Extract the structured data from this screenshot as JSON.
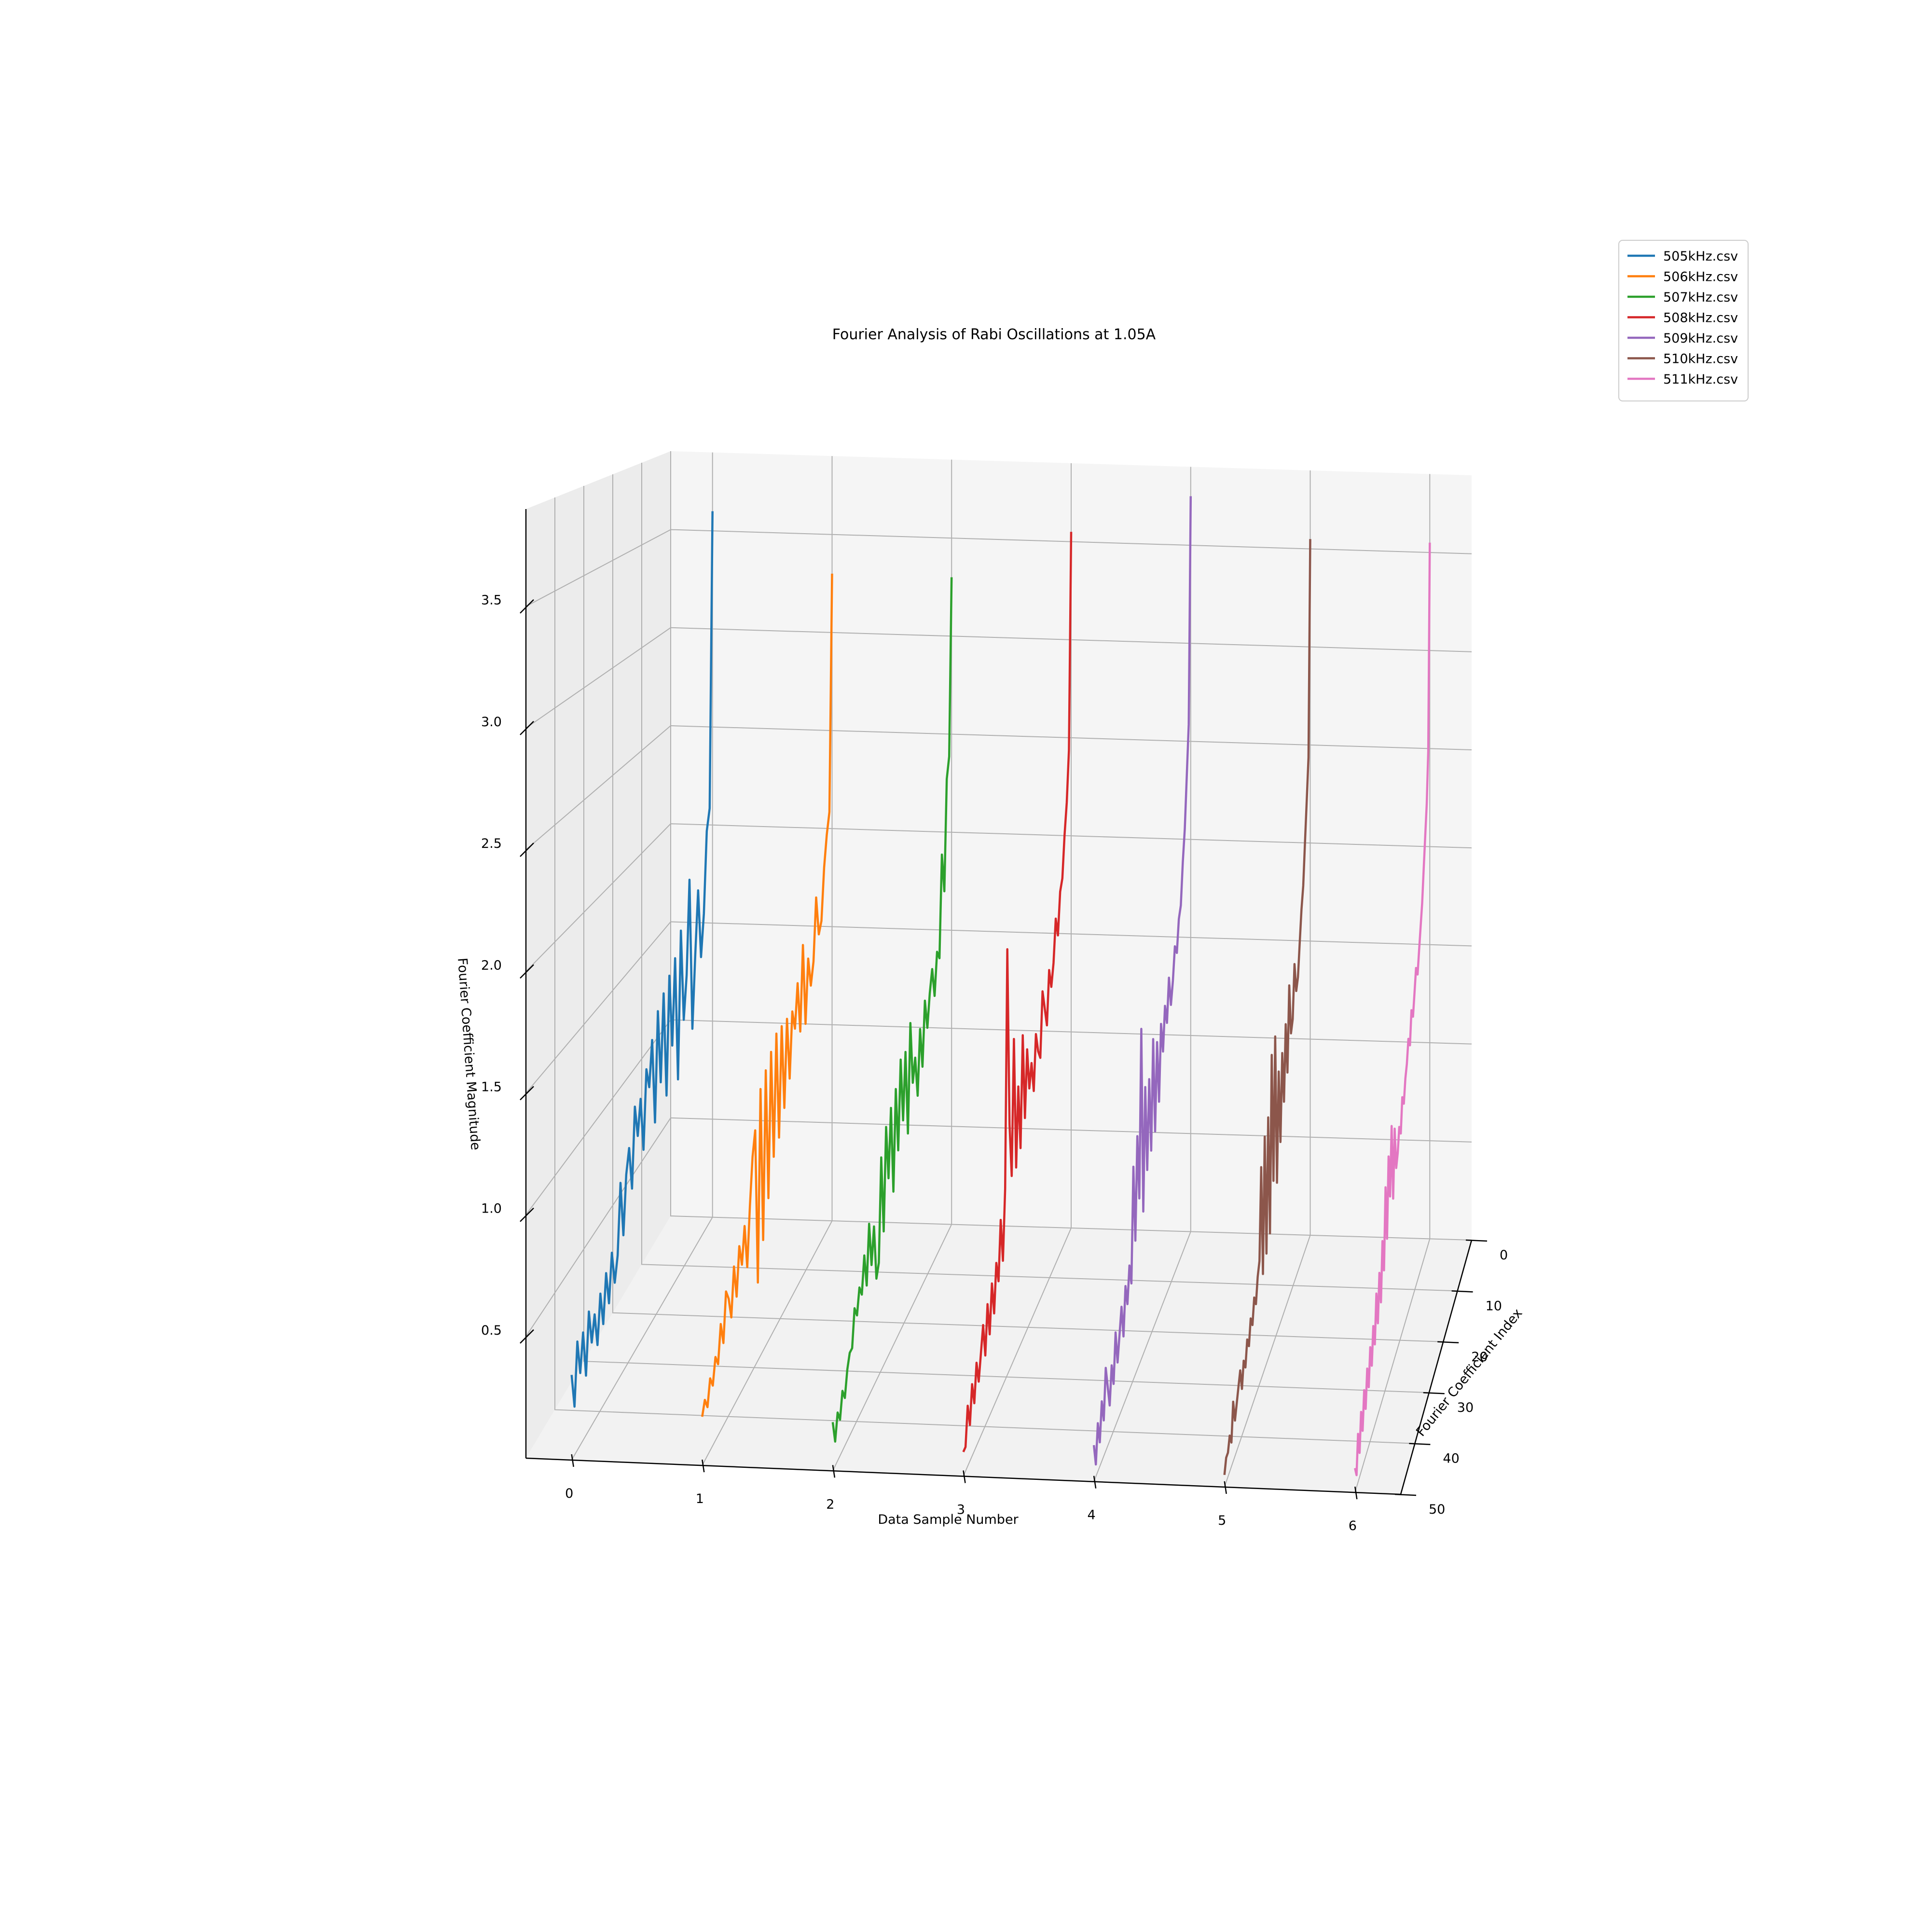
{
  "chart_data": {
    "type": "line",
    "title": "Fourier Analysis of Rabi Oscillations at 1.05A",
    "xlabel": "Data Sample Number",
    "ylabel": "Fourier Coefficient Index",
    "zlabel": "Fourier Coefficient Magnitude",
    "x_ticks": [
      "0",
      "1",
      "2",
      "3",
      "4",
      "5",
      "6"
    ],
    "y_ticks": [
      "0",
      "10",
      "20",
      "30",
      "40",
      "50"
    ],
    "z_ticks": [
      "0.5",
      "1.0",
      "1.5",
      "2.0",
      "2.5",
      "3.0",
      "3.5"
    ],
    "xlim": [
      -0.35,
      6.35
    ],
    "ylim": [
      0,
      50
    ],
    "zlim": [
      0,
      3.9
    ],
    "grid": true,
    "legend_position": "top-right",
    "colors": [
      "#1f77b4",
      "#ff7f0e",
      "#2ca02c",
      "#d62728",
      "#9467bd",
      "#8c564b",
      "#e377c2"
    ],
    "series": [
      {
        "name": "505kHz.csv",
        "x": 0,
        "values": [
          3.6,
          2.1,
          2.0,
          1.6,
          1.4,
          1.75,
          1.45,
          1.1,
          1.85,
          1.4,
          1.2,
          1.65,
          0.95,
          1.55,
          1.15,
          1.5,
          0.95,
          1.45,
          1.05,
          1.4,
          0.9,
          1.3,
          1.1,
          1.2,
          0.85,
          1.1,
          0.95,
          1.1,
          0.75,
          0.95,
          0.85,
          0.6,
          0.85,
          0.55,
          0.45,
          0.6,
          0.4,
          0.55,
          0.35,
          0.5,
          0.3,
          0.45,
          0.35,
          0.5,
          0.25,
          0.45,
          0.3,
          0.45,
          0.2,
          0.35
        ]
      },
      {
        "name": "506kHz.csv",
        "x": 1,
        "values": [
          3.3,
          2.1,
          2.0,
          1.85,
          1.6,
          1.55,
          1.75,
          1.45,
          1.35,
          1.5,
          1.2,
          1.6,
          1.2,
          1.45,
          1.25,
          1.35,
          1.05,
          1.35,
          0.95,
          1.35,
          0.85,
          1.35,
          0.8,
          1.3,
          0.65,
          1.25,
          0.5,
          1.2,
          0.35,
          1.05,
          0.95,
          0.75,
          0.5,
          0.7,
          0.55,
          0.65,
          0.45,
          0.6,
          0.4,
          0.5,
          0.55,
          0.35,
          0.45,
          0.3,
          0.35,
          0.25,
          0.3,
          0.2,
          0.25,
          0.2
        ]
      },
      {
        "name": "507kHz.csv",
        "x": 2,
        "values": [
          3.3,
          2.4,
          2.3,
          1.75,
          1.95,
          1.45,
          1.5,
          1.3,
          1.45,
          1.35,
          1.2,
          1.35,
          1.05,
          1.25,
          0.95,
          1.15,
          1.05,
          1.35,
          0.85,
          1.25,
          0.95,
          1.25,
          0.85,
          1.15,
          0.7,
          1.1,
          0.8,
          1.05,
          0.6,
          0.95,
          0.5,
          0.45,
          0.7,
          0.55,
          0.75,
          0.5,
          0.65,
          0.5,
          0.55,
          0.45,
          0.5,
          0.35,
          0.35,
          0.3,
          0.2,
          0.25,
          0.15,
          0.2,
          0.1,
          0.2
        ]
      },
      {
        "name": "508kHz.csv",
        "x": 3,
        "values": [
          3.55,
          2.45,
          2.2,
          2.05,
          1.85,
          1.8,
          1.6,
          1.7,
          1.5,
          1.4,
          1.5,
          1.25,
          1.35,
          1.45,
          1.15,
          1.2,
          1.3,
          1.05,
          1.2,
          1.1,
          1.3,
          1.0,
          1.4,
          0.9,
          1.2,
          0.85,
          1.45,
          0.85,
          1.1,
          1.9,
          0.85,
          0.55,
          0.75,
          0.5,
          0.6,
          0.4,
          0.55,
          0.35,
          0.5,
          0.3,
          0.45,
          0.35,
          0.25,
          0.35,
          0.2,
          0.3,
          0.15,
          0.25,
          0.1,
          0.1
        ]
      },
      {
        "name": "509kHz.csv",
        "x": 4,
        "values": [
          3.75,
          2.6,
          2.35,
          2.1,
          1.95,
          1.75,
          1.7,
          1.55,
          1.6,
          1.45,
          1.35,
          1.5,
          1.3,
          1.4,
          1.2,
          1.35,
          1.0,
          1.3,
          0.9,
          1.35,
          0.85,
          1.2,
          0.8,
          1.2,
          0.65,
          1.5,
          0.75,
          1.05,
          0.6,
          0.95,
          0.45,
          0.55,
          0.4,
          0.5,
          0.3,
          0.45,
          0.35,
          0.25,
          0.4,
          0.2,
          0.3,
          0.15,
          0.25,
          0.35,
          0.15,
          0.25,
          0.1,
          0.2,
          0.05,
          0.15
        ]
      },
      {
        "name": "510kHz.csv",
        "x": 5,
        "values": [
          3.55,
          2.45,
          2.25,
          2.05,
          1.85,
          1.75,
          1.6,
          1.45,
          1.4,
          1.55,
          1.3,
          1.25,
          1.5,
          1.1,
          1.35,
          1.0,
          1.25,
          0.85,
          1.2,
          0.7,
          1.4,
          0.75,
          1.35,
          0.55,
          1.1,
          0.5,
          1.05,
          0.45,
          0.95,
          0.55,
          0.5,
          0.4,
          0.45,
          0.35,
          0.4,
          0.3,
          0.35,
          0.25,
          0.3,
          0.2,
          0.3,
          0.25,
          0.2,
          0.15,
          0.25,
          0.1,
          0.15,
          0.1,
          0.1,
          0.05
        ]
      },
      {
        "name": "511kHz.csv",
        "x": 6,
        "values": [
          3.55,
          2.5,
          2.25,
          2.1,
          1.95,
          1.8,
          1.7,
          1.6,
          1.5,
          1.55,
          1.45,
          1.35,
          1.4,
          1.25,
          1.3,
          1.2,
          1.15,
          1.05,
          1.1,
          0.95,
          1.0,
          0.9,
          0.85,
          1.05,
          0.75,
          1.1,
          0.8,
          1.0,
          0.65,
          0.9,
          0.55,
          0.7,
          0.45,
          0.6,
          0.4,
          0.55,
          0.35,
          0.45,
          0.3,
          0.4,
          0.25,
          0.35,
          0.2,
          0.3,
          0.15,
          0.25,
          0.1,
          0.2,
          0.05,
          0.1
        ]
      }
    ]
  }
}
